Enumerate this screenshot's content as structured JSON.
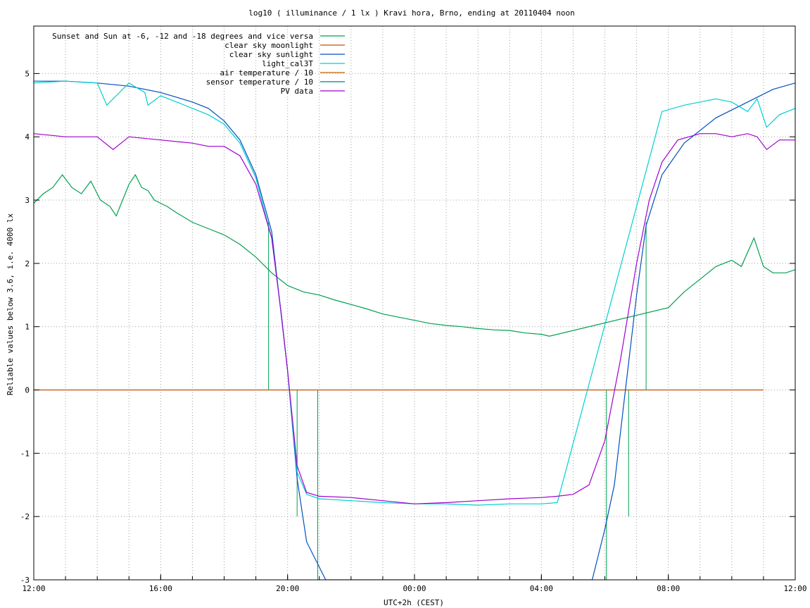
{
  "chart_data": {
    "type": "line",
    "title": "log10 ( illuminance / 1 lx ) Kravi hora, Brno, ending at 20110404 noon",
    "xlabel": "UTC+2h (CEST)",
    "ylabel": "Reliable values below 3.6, i.e. 4000 lx",
    "xlim": [
      0,
      24
    ],
    "ylim": [
      -3,
      5.75
    ],
    "grid": true,
    "legend_position": "top-left",
    "x_ticks": [
      {
        "v": 0,
        "label": "12:00"
      },
      {
        "v": 4,
        "label": "16:00"
      },
      {
        "v": 8,
        "label": "20:00"
      },
      {
        "v": 12,
        "label": "00:00"
      },
      {
        "v": 16,
        "label": "04:00"
      },
      {
        "v": 20,
        "label": "08:00"
      },
      {
        "v": 24,
        "label": "12:00"
      }
    ],
    "y_ticks": [
      -3,
      -2,
      -1,
      0,
      1,
      2,
      3,
      4,
      5
    ],
    "series": [
      {
        "name": "Sunset and Sun at -6, -12 and -18 degrees and vice versa",
        "color": "#00a050",
        "style": "impulse",
        "impulses": [
          [
            7.4,
            2.65
          ],
          [
            8.3,
            -2.0
          ],
          [
            8.95,
            -3.0
          ],
          [
            18.05,
            -3.0
          ],
          [
            18.75,
            -2.0
          ],
          [
            17.95,
            0.0
          ],
          [
            19.3,
            2.65
          ]
        ],
        "points": [
          [
            0,
            2.95
          ],
          [
            0.3,
            3.1
          ],
          [
            0.6,
            3.2
          ],
          [
            0.9,
            3.4
          ],
          [
            1.2,
            3.2
          ],
          [
            1.5,
            3.1
          ],
          [
            1.8,
            3.3
          ],
          [
            2.1,
            3.0
          ],
          [
            2.4,
            2.9
          ],
          [
            2.6,
            2.75
          ],
          [
            2.8,
            3.0
          ],
          [
            3.0,
            3.25
          ],
          [
            3.2,
            3.4
          ],
          [
            3.4,
            3.2
          ],
          [
            3.6,
            3.15
          ],
          [
            3.8,
            3.0
          ],
          [
            4.0,
            2.95
          ],
          [
            4.2,
            2.9
          ],
          [
            4.5,
            2.8
          ],
          [
            5.0,
            2.65
          ],
          [
            5.5,
            2.55
          ],
          [
            6.0,
            2.45
          ],
          [
            6.5,
            2.3
          ],
          [
            7.0,
            2.1
          ],
          [
            7.5,
            1.85
          ],
          [
            8.0,
            1.65
          ],
          [
            8.5,
            1.55
          ],
          [
            9.0,
            1.5
          ],
          [
            9.5,
            1.42
          ],
          [
            10.0,
            1.35
          ],
          [
            10.5,
            1.28
          ],
          [
            11.0,
            1.2
          ],
          [
            11.5,
            1.15
          ],
          [
            12.0,
            1.1
          ],
          [
            12.5,
            1.05
          ],
          [
            13.0,
            1.02
          ],
          [
            13.5,
            1.0
          ],
          [
            14.0,
            0.97
          ],
          [
            14.5,
            0.95
          ],
          [
            15.0,
            0.94
          ],
          [
            15.5,
            0.9
          ],
          [
            16.0,
            0.88
          ],
          [
            16.25,
            0.85
          ],
          [
            20.0,
            1.3
          ],
          [
            20.5,
            1.55
          ],
          [
            21.0,
            1.75
          ],
          [
            21.5,
            1.95
          ],
          [
            22.0,
            2.05
          ],
          [
            22.3,
            1.95
          ],
          [
            22.7,
            2.4
          ],
          [
            23.0,
            1.95
          ],
          [
            23.3,
            1.85
          ],
          [
            23.7,
            1.85
          ],
          [
            24.0,
            1.9
          ]
        ]
      },
      {
        "name": "clear sky moonlight",
        "color": "#c05000",
        "points": [
          [
            0,
            0
          ],
          [
            23.0,
            0
          ]
        ]
      },
      {
        "name": "clear sky sunlight",
        "color": "#0050c0",
        "points": [
          [
            0,
            4.88
          ],
          [
            1,
            4.88
          ],
          [
            2,
            4.85
          ],
          [
            3,
            4.8
          ],
          [
            4,
            4.7
          ],
          [
            5,
            4.55
          ],
          [
            5.5,
            4.45
          ],
          [
            6,
            4.25
          ],
          [
            6.5,
            3.95
          ],
          [
            7,
            3.4
          ],
          [
            7.5,
            2.5
          ],
          [
            8.0,
            0.3
          ],
          [
            8.3,
            -1.4
          ],
          [
            8.6,
            -2.4
          ],
          [
            9.2,
            -3.0
          ],
          [
            17.6,
            -3.0
          ],
          [
            18.0,
            -2.2
          ],
          [
            18.3,
            -1.5
          ],
          [
            18.6,
            -0.2
          ],
          [
            19.0,
            1.5
          ],
          [
            19.3,
            2.6
          ],
          [
            19.8,
            3.4
          ],
          [
            20.5,
            3.9
          ],
          [
            21.5,
            4.3
          ],
          [
            22.5,
            4.55
          ],
          [
            23.3,
            4.75
          ],
          [
            24,
            4.85
          ]
        ]
      },
      {
        "name": "light_cal3T",
        "color": "#00d0d0",
        "points": [
          [
            0,
            4.85
          ],
          [
            1,
            4.88
          ],
          [
            2,
            4.85
          ],
          [
            2.3,
            4.5
          ],
          [
            3,
            4.85
          ],
          [
            3.5,
            4.7
          ],
          [
            3.6,
            4.5
          ],
          [
            4,
            4.65
          ],
          [
            4.5,
            4.55
          ],
          [
            5,
            4.45
          ],
          [
            5.5,
            4.35
          ],
          [
            6,
            4.2
          ],
          [
            6.5,
            3.9
          ],
          [
            7,
            3.35
          ],
          [
            7.5,
            2.4
          ],
          [
            7.8,
            1.2
          ],
          [
            8.0,
            0.3
          ],
          [
            8.3,
            -1.3
          ],
          [
            8.6,
            -1.65
          ],
          [
            9,
            -1.72
          ],
          [
            10,
            -1.75
          ],
          [
            11,
            -1.78
          ],
          [
            12,
            -1.8
          ],
          [
            13,
            -1.8
          ],
          [
            14,
            -1.82
          ],
          [
            15,
            -1.8
          ],
          [
            16,
            -1.8
          ],
          [
            16.5,
            -1.78
          ],
          [
            19.8,
            4.4
          ],
          [
            20.5,
            4.5
          ],
          [
            21.0,
            4.55
          ],
          [
            21.5,
            4.6
          ],
          [
            22.0,
            4.55
          ],
          [
            22.5,
            4.4
          ],
          [
            22.8,
            4.6
          ],
          [
            23.1,
            4.15
          ],
          [
            23.5,
            4.35
          ],
          [
            24.0,
            4.45
          ]
        ]
      },
      {
        "name": "air temperature / 10",
        "color": "#c06000",
        "points": []
      },
      {
        "name": "sensor temperature / 10",
        "color": "#008080",
        "points": []
      },
      {
        "name": "PV data",
        "color": "#a000d0",
        "points": [
          [
            0,
            4.05
          ],
          [
            1,
            4.0
          ],
          [
            2,
            4.0
          ],
          [
            2.5,
            3.8
          ],
          [
            3,
            4.0
          ],
          [
            4,
            3.95
          ],
          [
            5,
            3.9
          ],
          [
            5.5,
            3.85
          ],
          [
            6,
            3.85
          ],
          [
            6.5,
            3.7
          ],
          [
            7,
            3.25
          ],
          [
            7.5,
            2.4
          ],
          [
            7.8,
            1.2
          ],
          [
            8.0,
            0.3
          ],
          [
            8.3,
            -1.2
          ],
          [
            8.6,
            -1.62
          ],
          [
            9,
            -1.68
          ],
          [
            10,
            -1.7
          ],
          [
            11,
            -1.75
          ],
          [
            12,
            -1.8
          ],
          [
            13,
            -1.78
          ],
          [
            14,
            -1.75
          ],
          [
            15,
            -1.72
          ],
          [
            16,
            -1.7
          ],
          [
            16.5,
            -1.68
          ],
          [
            17,
            -1.65
          ],
          [
            17.5,
            -1.5
          ],
          [
            18,
            -0.8
          ],
          [
            18.5,
            0.5
          ],
          [
            19.0,
            2.0
          ],
          [
            19.4,
            3.0
          ],
          [
            19.8,
            3.6
          ],
          [
            20.3,
            3.95
          ],
          [
            21,
            4.05
          ],
          [
            21.5,
            4.05
          ],
          [
            22,
            4.0
          ],
          [
            22.5,
            4.05
          ],
          [
            22.8,
            4.0
          ],
          [
            23.1,
            3.8
          ],
          [
            23.5,
            3.95
          ],
          [
            24,
            3.95
          ]
        ]
      }
    ]
  }
}
